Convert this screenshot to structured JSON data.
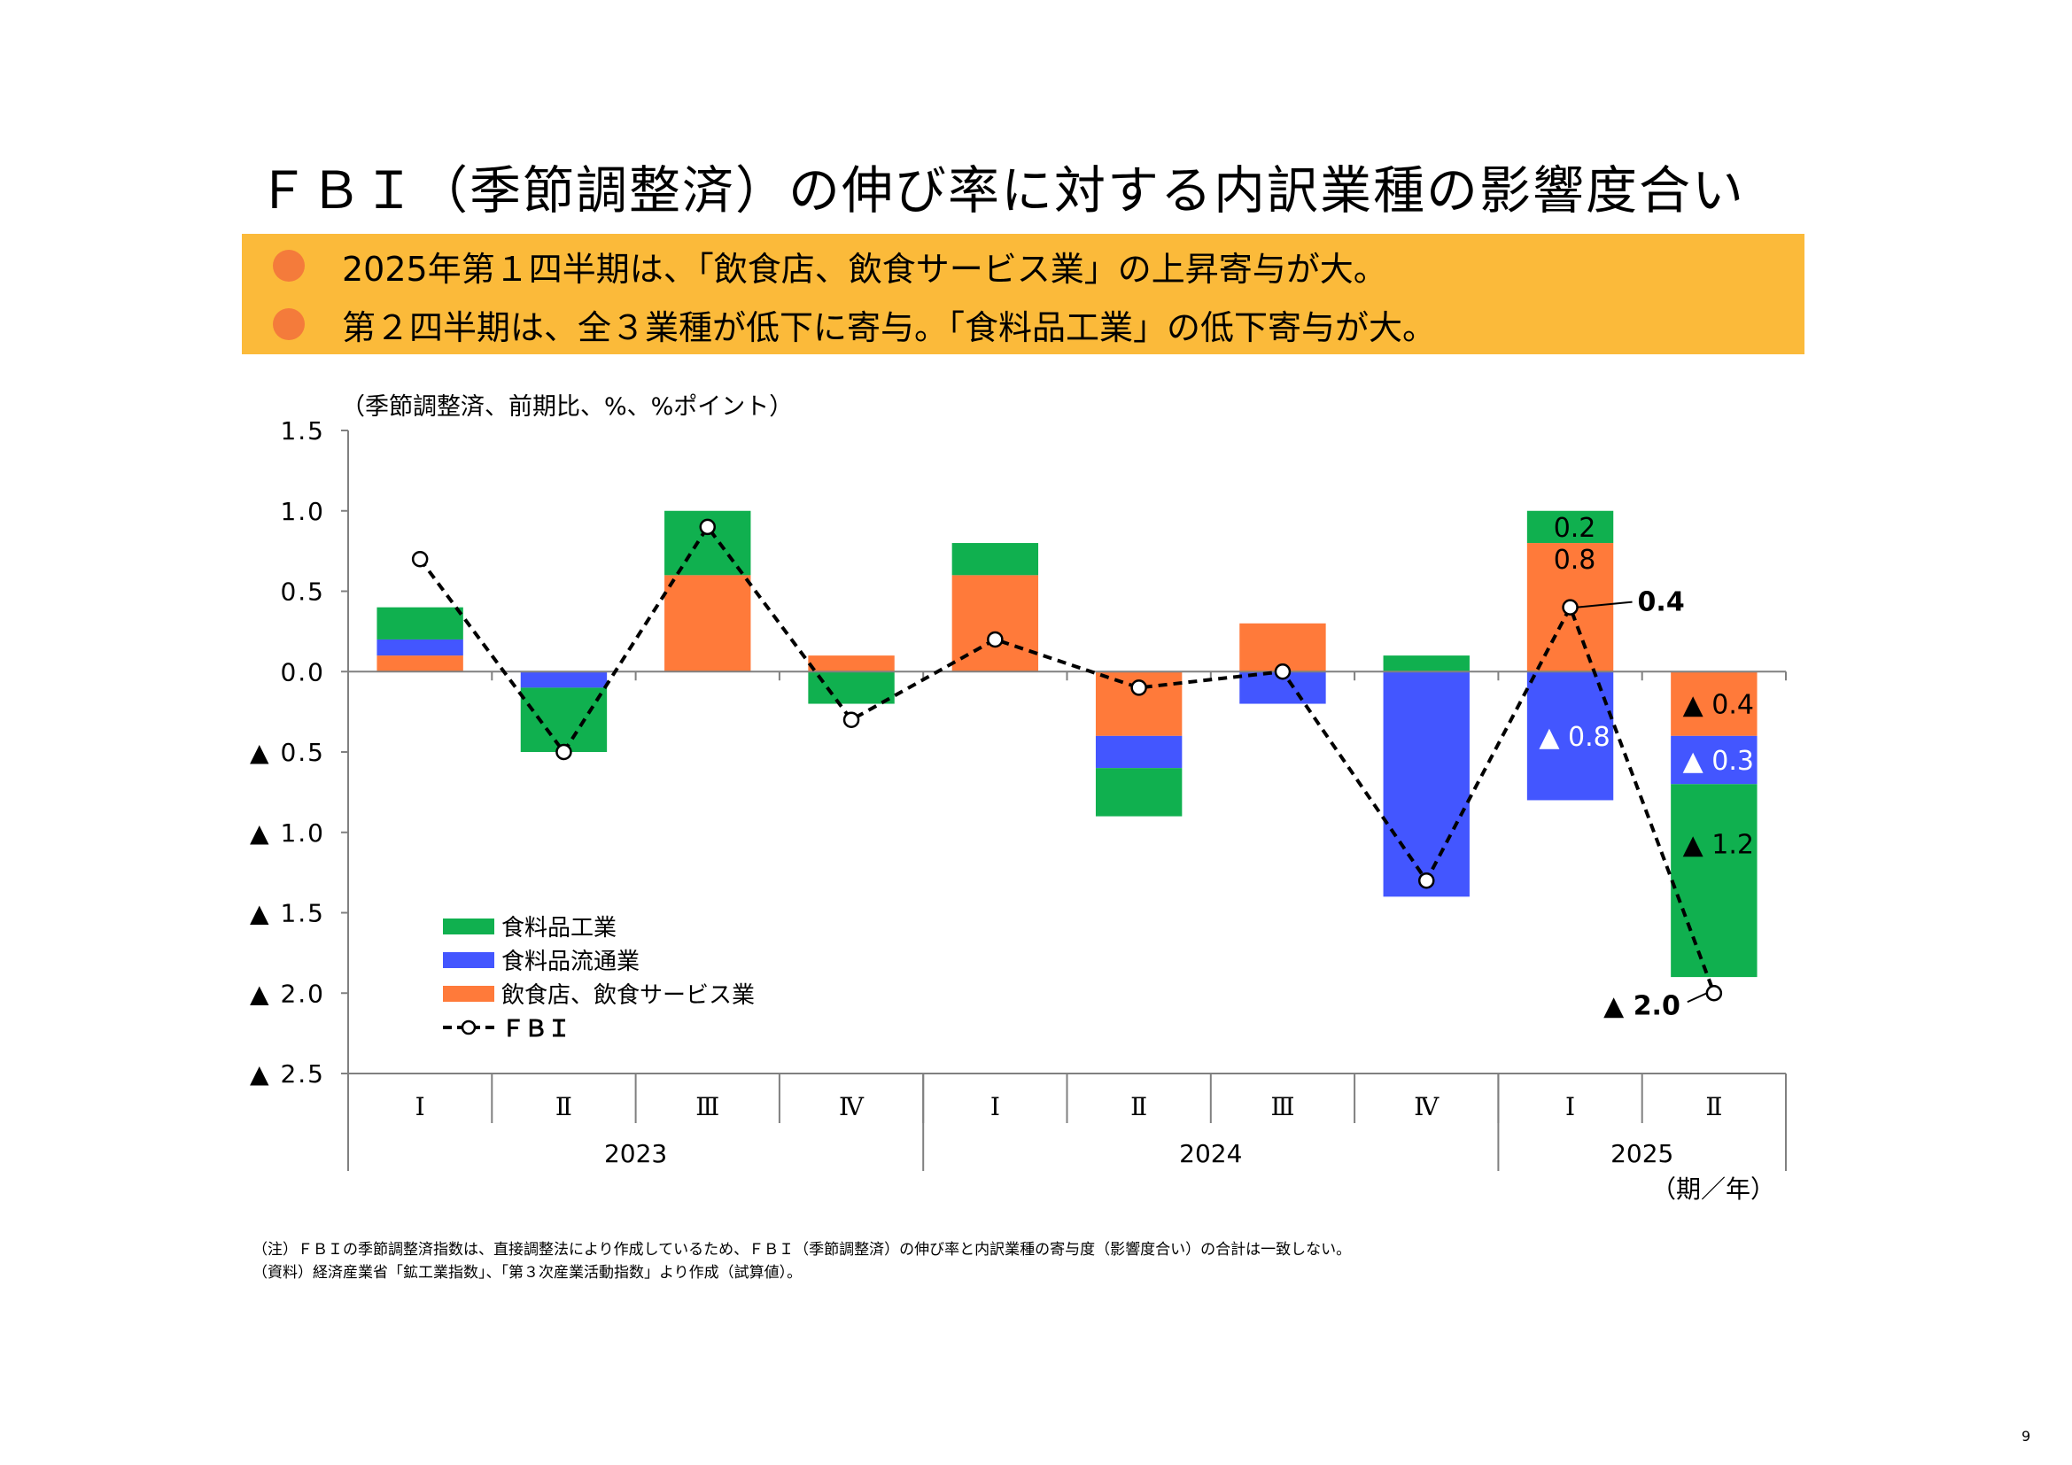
{
  "title": "ＦＢＩ（季節調整済）の伸び率に対する内訳業種の影響度合い",
  "banner": {
    "bullets": [
      "2025年第１四半期は、「飲食店、飲食サービス業」の上昇寄与が大。",
      "第２四半期は、全３業種が低下に寄与。「食料品工業」の低下寄与が大。"
    ]
  },
  "colors": {
    "food_industry": "#10B04F",
    "food_distribution": "#4356FF",
    "restaurant": "#FF7A3A",
    "banner": "#FBBA3A",
    "bullet": "#F47B3B"
  },
  "chart_data": {
    "type": "bar",
    "stacked": true,
    "unit_label": "（季節調整済、前期比、%、%ポイント）",
    "x_unit_label": "（期／年）",
    "ylim": [
      -2.5,
      1.5
    ],
    "yticks": [
      1.5,
      1.0,
      0.5,
      0.0,
      -0.5,
      -1.0,
      -1.5,
      -2.0,
      -2.5
    ],
    "ytick_labels": [
      "1.5",
      "1.0",
      "0.5",
      "0.0",
      "▲ 0.5",
      "▲ 1.0",
      "▲ 1.5",
      "▲ 2.0",
      "▲ 2.5"
    ],
    "categories": [
      "Ⅰ",
      "Ⅱ",
      "Ⅲ",
      "Ⅳ",
      "Ⅰ",
      "Ⅱ",
      "Ⅲ",
      "Ⅳ",
      "Ⅰ",
      "Ⅱ"
    ],
    "years": [
      {
        "label": "2023",
        "count": 4
      },
      {
        "label": "2024",
        "count": 4
      },
      {
        "label": "2025",
        "count": 2
      }
    ],
    "series": [
      {
        "key": "restaurant",
        "name": "飲食店、飲食サービス業",
        "values": [
          0.1,
          0,
          0.6,
          0.1,
          0.6,
          -0.4,
          0.3,
          0,
          0.8,
          -0.4
        ]
      },
      {
        "key": "food_distribution",
        "name": "食料品流通業",
        "values": [
          0.1,
          -0.1,
          0,
          0,
          0,
          -0.2,
          -0.2,
          -1.4,
          -0.8,
          -0.3
        ]
      },
      {
        "key": "food_industry",
        "name": "食料品工業",
        "values": [
          0.2,
          -0.4,
          0.4,
          -0.2,
          0.2,
          -0.3,
          0,
          0.1,
          0.2,
          -1.2
        ]
      }
    ],
    "line": {
      "name": "ＦＢＩ",
      "values": [
        0.7,
        -0.5,
        0.9,
        -0.3,
        0.2,
        -0.1,
        0.0,
        -1.3,
        0.4,
        -2.0
      ]
    },
    "legend": [
      {
        "key": "food_industry",
        "label": "食料品工業"
      },
      {
        "key": "food_distribution",
        "label": "食料品流通業"
      },
      {
        "key": "restaurant",
        "label": "飲食店、飲食サービス業"
      },
      {
        "key": "fbi_line",
        "label": "ＦＢＩ"
      }
    ],
    "annotations": [
      {
        "text": "0.2",
        "cat": 8,
        "y": 0.9,
        "color": "#000000",
        "weight": "normal"
      },
      {
        "text": "0.8",
        "cat": 8,
        "y": 0.7,
        "color": "#000000",
        "weight": "normal"
      },
      {
        "text": "▲ 0.8",
        "cat": 8,
        "y": -0.4,
        "color": "#ffffff",
        "weight": "normal"
      },
      {
        "text": "▲ 0.4",
        "cat": 9,
        "y": -0.2,
        "color": "#000000",
        "weight": "normal"
      },
      {
        "text": "▲ 0.3",
        "cat": 9,
        "y": -0.55,
        "color": "#ffffff",
        "weight": "normal"
      },
      {
        "text": "▲ 1.2",
        "cat": 9,
        "y": -1.07,
        "color": "#000000",
        "weight": "normal"
      },
      {
        "text": "0.4",
        "cat": 8,
        "y": 0.4,
        "color": "#000000",
        "weight": "bold",
        "callout": "right"
      },
      {
        "text": "▲ 2.0",
        "cat": 9,
        "y": -2.0,
        "color": "#000000",
        "weight": "bold",
        "callout": "left"
      }
    ]
  },
  "notes": [
    "（注）ＦＢＩの季節調整済指数は、直接調整法により作成しているため、ＦＢＩ（季節調整済）の伸び率と内訳業種の寄与度（影響度合い）の合計は一致しない。",
    "（資料）経済産業省「鉱工業指数」、「第３次産業活動指数」より作成（試算値）。"
  ],
  "page_number": "9"
}
